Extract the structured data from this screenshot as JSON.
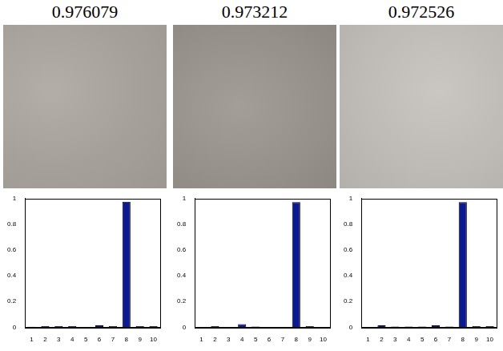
{
  "chart_data": [
    {
      "type": "bar",
      "title": "0.976079",
      "categories": [
        "1",
        "2",
        "3",
        "4",
        "5",
        "6",
        "7",
        "8",
        "9",
        "10"
      ],
      "values": [
        0.004,
        0.008,
        0.008,
        0.008,
        0.002,
        0.015,
        0.008,
        0.976,
        0.008,
        0.008
      ],
      "color": "#0b1a8f",
      "ylim": [
        0,
        1
      ],
      "yticks": [
        0,
        0.2,
        0.4,
        0.6,
        0.8,
        1
      ],
      "grid": false
    },
    {
      "type": "bar",
      "title": "0.973212",
      "categories": [
        "1",
        "2",
        "3",
        "4",
        "5",
        "6",
        "7",
        "8",
        "9",
        "10"
      ],
      "values": [
        0.002,
        0.008,
        0.002,
        0.025,
        0.005,
        0.002,
        0.002,
        0.973,
        0.008,
        0.002
      ],
      "color": "#0b1a8f",
      "ylim": [
        0,
        1
      ],
      "yticks": [
        0,
        0.2,
        0.4,
        0.6,
        0.8,
        1
      ],
      "grid": false
    },
    {
      "type": "bar",
      "title": "0.972526",
      "categories": [
        "1",
        "2",
        "3",
        "4",
        "5",
        "6",
        "7",
        "8",
        "9",
        "10"
      ],
      "values": [
        0.002,
        0.015,
        0.006,
        0.006,
        0.006,
        0.015,
        0.006,
        0.972,
        0.008,
        0.008
      ],
      "color": "#0b1a8f",
      "ylim": [
        0,
        1
      ],
      "yticks": [
        0,
        0.2,
        0.4,
        0.6,
        0.8,
        1
      ],
      "grid": false
    }
  ]
}
